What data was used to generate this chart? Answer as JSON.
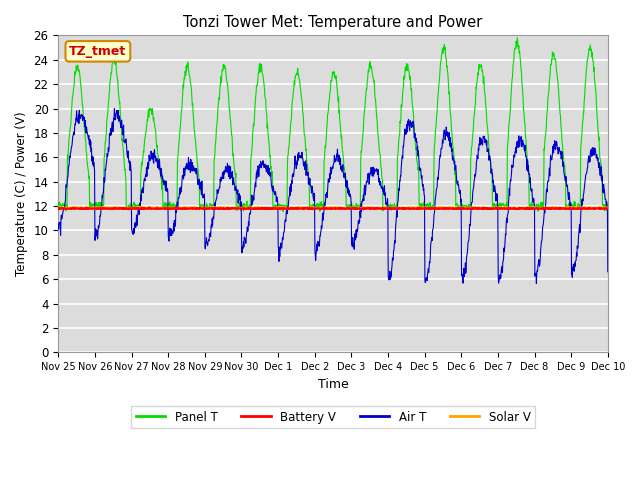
{
  "title": "Tonzi Tower Met: Temperature and Power",
  "xlabel": "Time",
  "ylabel": "Temperature (C) / Power (V)",
  "ylim": [
    0,
    26
  ],
  "yticks": [
    0,
    2,
    4,
    6,
    8,
    10,
    12,
    14,
    16,
    18,
    20,
    22,
    24,
    26
  ],
  "plot_bg": "#dcdcdc",
  "panel_color": "#00dd00",
  "battery_color": "#ff0000",
  "air_color": "#0000cc",
  "solar_color": "#ffa500",
  "tz_label": "TZ_tmet",
  "battery_v": 11.8,
  "solar_v": 11.85,
  "tick_labels": [
    "Nov 25",
    "Nov 26",
    "Nov 27",
    "Nov 28",
    "Nov 29",
    "Nov 30",
    "Dec 1",
    "Dec 2",
    "Dec 3",
    "Dec 4",
    "Dec 5",
    "Dec 6",
    "Dec 7",
    "Dec 8",
    "Dec 9",
    "Dec 10"
  ],
  "legend_labels": [
    "Panel T",
    "Battery V",
    "Air T",
    "Solar V"
  ]
}
